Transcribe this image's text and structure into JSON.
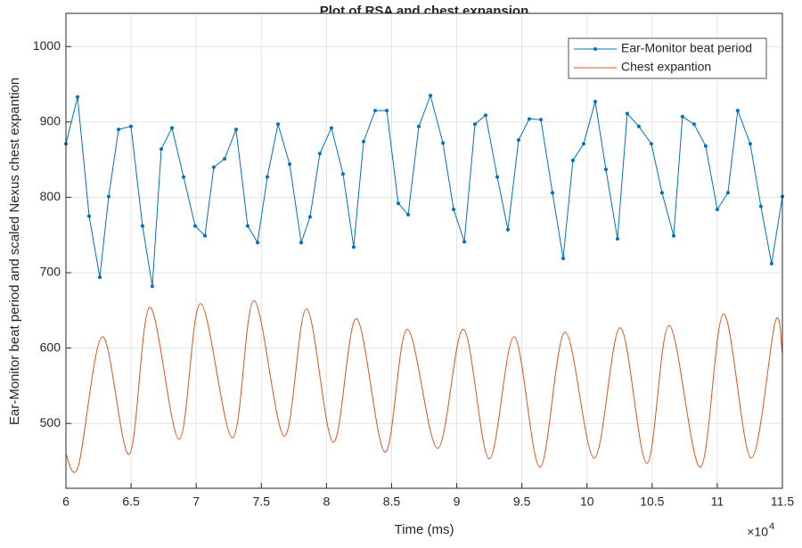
{
  "chart_data": {
    "type": "line",
    "title": "Plot of RSA and chest expansion",
    "xlabel": "Time (ms)",
    "ylabel": "Ear-Monitor beat period and scaled Nexus chest expantion",
    "x_exponent": {
      "base": "×10",
      "power": "4"
    },
    "xlim": [
      60000,
      115000
    ],
    "xticks": [
      {
        "value": 60000,
        "label": "6"
      },
      {
        "value": 65000,
        "label": "6.5"
      },
      {
        "value": 70000,
        "label": "7"
      },
      {
        "value": 75000,
        "label": "7.5"
      },
      {
        "value": 80000,
        "label": "8"
      },
      {
        "value": 85000,
        "label": "8.5"
      },
      {
        "value": 90000,
        "label": "9"
      },
      {
        "value": 95000,
        "label": "9.5"
      },
      {
        "value": 100000,
        "label": "10"
      },
      {
        "value": 105000,
        "label": "10.5"
      },
      {
        "value": 110000,
        "label": "11"
      },
      {
        "value": 115000,
        "label": "11.5"
      }
    ],
    "ylim": [
      414,
      1044
    ],
    "yticks": [
      500,
      600,
      700,
      800,
      900,
      1000
    ],
    "grid": true,
    "legend": "northeast",
    "series": [
      {
        "name": "Ear-Monitor beat period",
        "color": "#0072BD",
        "marker": true,
        "x": [
          60000,
          60890,
          61780,
          62600,
          63280,
          64040,
          64990,
          65880,
          66630,
          67320,
          68140,
          69030,
          69920,
          70670,
          71350,
          72180,
          73060,
          73950,
          74710,
          75460,
          76280,
          77170,
          78060,
          78740,
          79490,
          80380,
          81270,
          82090,
          82850,
          83740,
          84630,
          85510,
          86270,
          87090,
          87980,
          88940,
          89760,
          90580,
          91400,
          92220,
          93110,
          93930,
          94750,
          95570,
          96460,
          97350,
          98170,
          98920,
          99740,
          100630,
          101450,
          102340,
          103090,
          103980,
          104940,
          105760,
          106650,
          107330,
          108220,
          109110,
          110000,
          110820,
          111570,
          112530,
          113350,
          114170,
          115000
        ],
        "values": [
          871,
          933,
          775,
          694,
          801,
          890,
          894,
          762,
          682,
          864,
          892,
          827,
          762,
          749,
          840,
          851,
          890,
          762,
          740,
          827,
          897,
          844,
          740,
          774,
          858,
          892,
          831,
          734,
          874,
          915,
          915,
          792,
          777,
          894,
          935,
          872,
          784,
          741,
          897,
          909,
          827,
          757,
          876,
          904,
          903,
          806,
          719,
          849,
          871,
          927,
          837,
          745,
          911,
          894,
          871,
          806,
          749,
          907,
          897,
          868,
          784,
          806,
          915,
          871,
          788,
          712,
          801
        ]
      },
      {
        "name": "Chest expantion",
        "color": "#D95319",
        "marker": false,
        "x": [
          60000,
          60960,
          62800,
          64860,
          66430,
          68690,
          70330,
          72790,
          74430,
          76760,
          78470,
          80520,
          82300,
          84490,
          86200,
          88530,
          90510,
          92490,
          94410,
          96390,
          98310,
          100560,
          102550,
          104600,
          106310,
          108700,
          110480,
          112600,
          114450,
          115000
        ],
        "values": [
          459,
          444,
          615,
          459,
          654,
          479,
          659,
          481,
          663,
          483,
          652,
          475,
          639,
          462,
          625,
          467,
          625,
          453,
          615,
          442,
          621,
          454,
          627,
          447,
          630,
          442,
          645,
          454,
          635,
          592
        ]
      }
    ]
  }
}
